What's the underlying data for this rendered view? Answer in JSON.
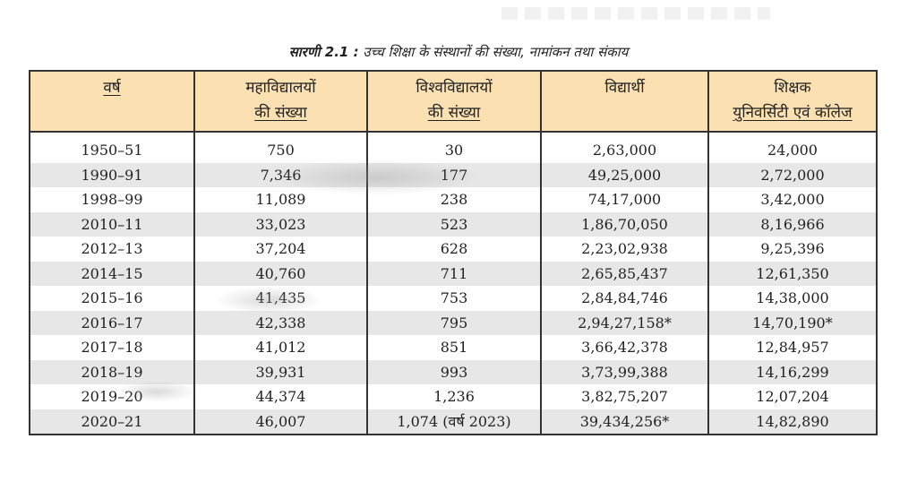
{
  "caption": {
    "label": "सारणी 2.1 :",
    "text": " उच्च शिक्षा के संस्थानों की संख्या, नामांकन तथा संकाय"
  },
  "table": {
    "headers": [
      {
        "line1": "वर्ष",
        "line2": ""
      },
      {
        "line1": "महाविद्यालयों",
        "line2": "की संख्या"
      },
      {
        "line1": "विश्वविद्यालयों",
        "line2": "की संख्या"
      },
      {
        "line1": "विद्यार्थी",
        "line2": ""
      },
      {
        "line1": "शिक्षक",
        "line2": "युनिवर्सिटी एवं कॉलेज"
      }
    ],
    "rows": [
      [
        "1950–51",
        "750",
        "30",
        "2,63,000",
        "24,000"
      ],
      [
        "1990–91",
        "7,346",
        "177",
        "49,25,000",
        "2,72,000"
      ],
      [
        "1998–99",
        "11,089",
        "238",
        "74,17,000",
        "3,42,000"
      ],
      [
        "2010–11",
        "33,023",
        "523",
        "1,86,70,050",
        "8,16,966"
      ],
      [
        "2012–13",
        "37,204",
        "628",
        "2,23,02,938",
        "9,25,396"
      ],
      [
        "2014–15",
        "40,760",
        "711",
        "2,65,85,437",
        "12,61,350"
      ],
      [
        "2015–16",
        "41,435",
        "753",
        "2,84,84,746",
        "14,38,000"
      ],
      [
        "2016–17",
        "42,338",
        "795",
        "2,94,27,158*",
        "14,70,190*"
      ],
      [
        "2017–18",
        "41,012",
        "851",
        "3,66,42,378",
        "12,84,957"
      ],
      [
        "2018–19",
        "39,931",
        "993",
        "3,73,99,388",
        "14,16,299"
      ],
      [
        "2019–20",
        "44,374",
        "1,236",
        "3,82,75,207",
        "12,07,204"
      ],
      [
        "2020–21",
        "46,007",
        "1,074 (वर्ष 2023)",
        "39,434,256*",
        "14,82,890"
      ]
    ]
  }
}
